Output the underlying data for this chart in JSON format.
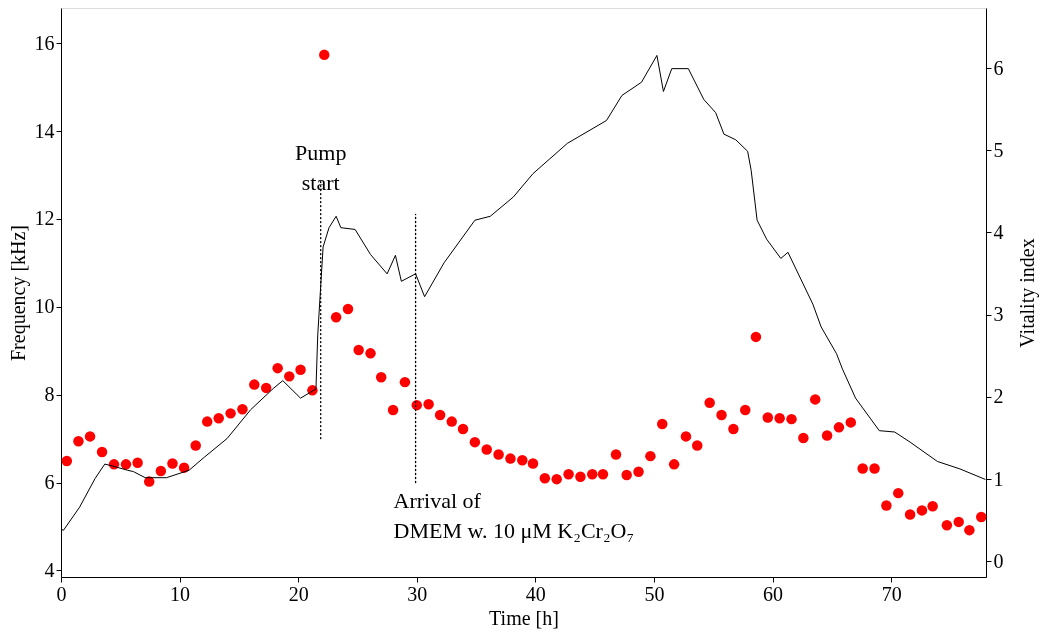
{
  "chart_data": {
    "type": "line",
    "xlabel": "Time [h]",
    "ylabel": "Frequency [kHz]",
    "y2label": "Vitality index",
    "xlim": [
      0,
      78
    ],
    "xticks": [
      0,
      10,
      20,
      30,
      40,
      50,
      60,
      70
    ],
    "ylim": [
      3.85,
      16.8
    ],
    "yticks": [
      4,
      6,
      8,
      10,
      12,
      14,
      16
    ],
    "y2lim": [
      -0.19,
      6.73
    ],
    "y2ticks": [
      0,
      1,
      2,
      3,
      4,
      5,
      6
    ],
    "grid": false,
    "series": [
      {
        "color": "#000000",
        "line_style": "solid",
        "marker": "none",
        "x": [
          0,
          0.2,
          1.57,
          2.87,
          3.69,
          4.3,
          5.6,
          6.1,
          7.1,
          8.9,
          10.8,
          12.1,
          14.0,
          16.0,
          17.9,
          18.7,
          20.2,
          21.5,
          21.65,
          22.1,
          22.6,
          23.2,
          23.6,
          24.8,
          26.1,
          27.5,
          28.2,
          28.7,
          29.9,
          30.66,
          32.3,
          34.9,
          36.2,
          38.15,
          39.8,
          42.7,
          46.0,
          47.3,
          48.95,
          50.25,
          50.8,
          51.5,
          52.9,
          54.2,
          55.2,
          55.9,
          56.9,
          57.9,
          58.2,
          58.7,
          59.5,
          60.7,
          61.3,
          63.4,
          64.1,
          65.4,
          65.9,
          67.0,
          69.0,
          70.3,
          71.6,
          73.9,
          75.8,
          77.95
        ],
        "values": [
          4.95,
          4.91,
          5.44,
          6.09,
          6.42,
          6.38,
          6.28,
          6.25,
          6.11,
          6.11,
          6.28,
          6.58,
          7.0,
          7.66,
          8.14,
          8.32,
          7.92,
          8.13,
          9.36,
          11.36,
          11.8,
          12.06,
          11.8,
          11.76,
          11.19,
          10.75,
          11.17,
          10.58,
          10.75,
          10.23,
          11.0,
          11.97,
          12.06,
          12.5,
          13.03,
          13.72,
          14.24,
          14.81,
          15.11,
          15.72,
          14.9,
          15.42,
          15.42,
          14.72,
          14.42,
          13.93,
          13.8,
          13.54,
          13.1,
          11.97,
          11.54,
          11.1,
          11.24,
          10.06,
          9.54,
          8.93,
          8.58,
          7.92,
          7.18,
          7.15,
          6.92,
          6.48,
          6.31,
          6.07
        ]
      },
      {
        "type": "line",
        "color": "#000000",
        "line_style": "dotted",
        "marker": "none",
        "x": [
          21.9,
          21.9
        ],
        "values": [
          7.0,
          12.9
        ]
      },
      {
        "type": "line",
        "color": "#000000",
        "line_style": "dotted",
        "marker": "none",
        "x": [
          29.9,
          29.9
        ],
        "values": [
          6.0,
          12.1
        ]
      },
      {
        "type": "scatter",
        "axis": "y2",
        "color": "#ff0000",
        "marker": "circle",
        "x": [
          0.49,
          1.47,
          2.45,
          3.46,
          4.47,
          5.48,
          6.46,
          7.44,
          8.42,
          9.4,
          10.38,
          11.36,
          12.33,
          13.3,
          14.3,
          15.3,
          16.3,
          17.3,
          18.27,
          19.25,
          20.2,
          21.2,
          22.2,
          23.2,
          24.2,
          25.1,
          26.1,
          27.0,
          28.0,
          29.0,
          30.0,
          31.0,
          31.97,
          32.95,
          33.9,
          34.9,
          35.9,
          36.9,
          37.9,
          38.9,
          39.8,
          40.8,
          41.8,
          42.8,
          43.8,
          44.8,
          45.7,
          46.8,
          47.7,
          48.7,
          49.7,
          50.7,
          51.7,
          52.7,
          53.65,
          54.7,
          55.7,
          56.7,
          57.7,
          58.6,
          59.6,
          60.6,
          61.6,
          62.6,
          63.6,
          64.6,
          65.6,
          66.6,
          67.6,
          68.6,
          69.6,
          70.6,
          71.6,
          72.6,
          73.5,
          74.7,
          75.7,
          76.6,
          77.6
        ],
        "values": [
          1.22,
          1.46,
          1.52,
          1.33,
          1.18,
          1.18,
          1.2,
          0.97,
          1.1,
          1.19,
          1.14,
          1.41,
          1.7,
          1.74,
          1.8,
          1.85,
          2.15,
          2.11,
          2.35,
          2.25,
          2.33,
          2.08,
          6.16,
          2.97,
          3.07,
          2.57,
          2.53,
          2.24,
          1.84,
          2.18,
          1.9,
          1.91,
          1.78,
          1.7,
          1.61,
          1.45,
          1.36,
          1.3,
          1.25,
          1.23,
          1.19,
          1.01,
          1.0,
          1.06,
          1.03,
          1.06,
          1.06,
          1.3,
          1.05,
          1.09,
          1.28,
          1.67,
          1.18,
          1.52,
          1.41,
          1.93,
          1.78,
          1.61,
          1.84,
          2.73,
          1.75,
          1.74,
          1.73,
          1.5,
          1.97,
          1.53,
          1.63,
          1.69,
          1.13,
          1.13,
          0.68,
          0.83,
          0.57,
          0.62,
          0.67,
          0.44,
          0.48,
          0.38,
          0.54
        ]
      }
    ],
    "annotations": [
      "Pump\nstart",
      "Arrival of\nDMEM w. 10 μM K₂Cr₂O₇"
    ]
  }
}
